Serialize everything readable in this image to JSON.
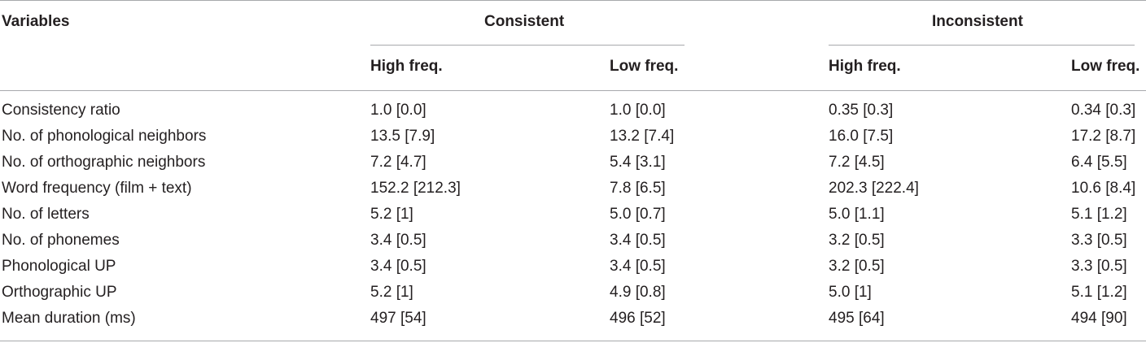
{
  "table": {
    "header": {
      "variables": "Variables",
      "group_consistent": "Consistent",
      "group_inconsistent": "Inconsistent",
      "sub": [
        "High freq.",
        "Low freq.",
        "High freq.",
        "Low freq."
      ]
    },
    "rows": [
      {
        "label": "Consistency ratio",
        "cells": [
          "1.0 [0.0]",
          "1.0 [0.0]",
          "0.35 [0.3]",
          "0.34 [0.3]"
        ]
      },
      {
        "label": "No. of phonological neighbors",
        "cells": [
          "13.5 [7.9]",
          "13.2 [7.4]",
          "16.0 [7.5]",
          "17.2 [8.7]"
        ]
      },
      {
        "label": "No. of orthographic neighbors",
        "cells": [
          "7.2 [4.7]",
          "5.4 [3.1]",
          "7.2 [4.5]",
          "6.4 [5.5]"
        ]
      },
      {
        "label": "Word frequency (film + text)",
        "cells": [
          "152.2 [212.3]",
          "7.8 [6.5]",
          "202.3 [222.4]",
          "10.6 [8.4]"
        ]
      },
      {
        "label": "No. of letters",
        "cells": [
          "5.2 [1]",
          "5.0 [0.7]",
          "5.0 [1.1]",
          "5.1 [1.2]"
        ]
      },
      {
        "label": "No. of phonemes",
        "cells": [
          "3.4 [0.5]",
          "3.4 [0.5]",
          "3.2 [0.5]",
          "3.3 [0.5]"
        ]
      },
      {
        "label": "Phonological UP",
        "cells": [
          "3.4 [0.5]",
          "3.4 [0.5]",
          "3.2 [0.5]",
          "3.3 [0.5]"
        ]
      },
      {
        "label": "Orthographic UP",
        "cells": [
          "5.2 [1]",
          "4.9 [0.8]",
          "5.0 [1]",
          "5.1 [1.2]"
        ]
      },
      {
        "label": "Mean duration (ms)",
        "cells": [
          "497 [54]",
          "496 [52]",
          "495 [64]",
          "494 [90]"
        ]
      }
    ]
  }
}
